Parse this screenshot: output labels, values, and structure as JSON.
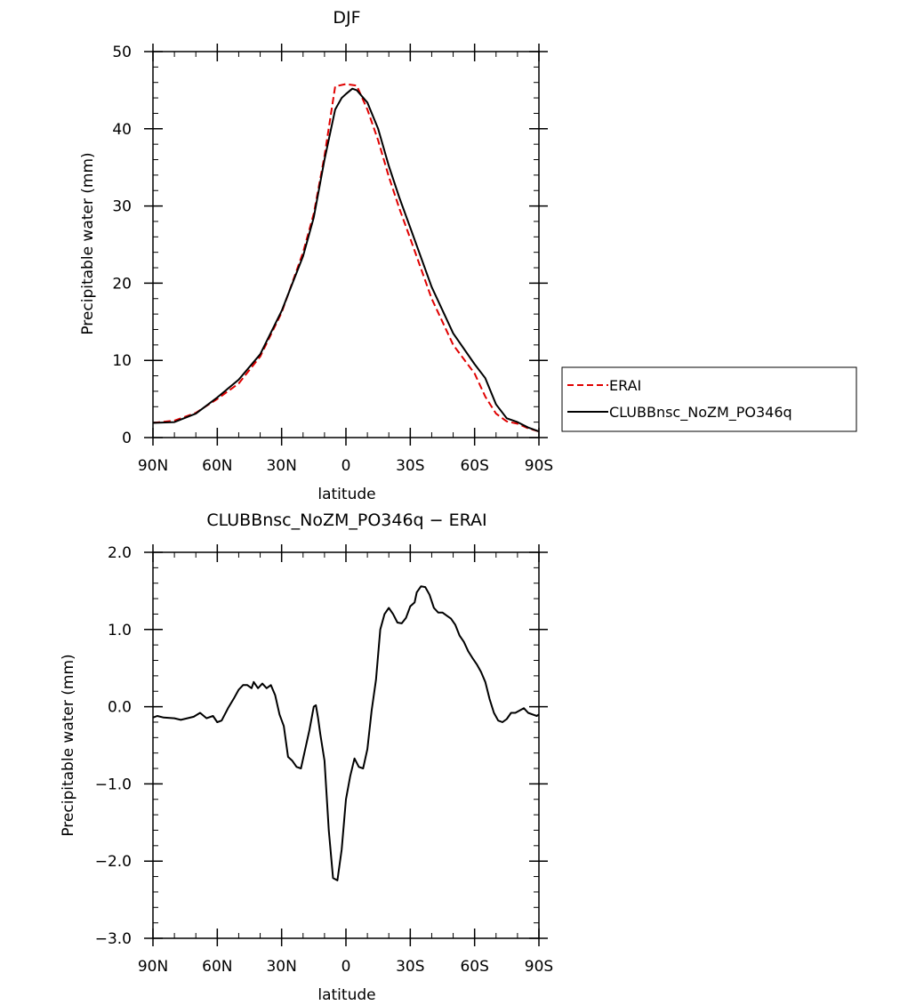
{
  "chart_data": [
    {
      "type": "line",
      "title": "DJF",
      "xlabel": "latitude",
      "ylabel": "Precipitable water (mm)",
      "xlim": [
        -90,
        90
      ],
      "ylim": [
        0,
        50
      ],
      "x_direction": "North to South",
      "xticks": [
        -90,
        -60,
        -30,
        0,
        30,
        60,
        90
      ],
      "xticklabels": [
        "90N",
        "60N",
        "30N",
        "0",
        "30S",
        "60S",
        "90S"
      ],
      "yticks": [
        0,
        10,
        20,
        30,
        40,
        50
      ],
      "yticklabels": [
        "0",
        "10",
        "20",
        "30",
        "40",
        "50"
      ],
      "legend": "right, outside plot, boxed",
      "grid": false,
      "series": [
        {
          "name": "ERAI",
          "color": "#e00000",
          "style": "dashed",
          "x": [
            -90,
            -80,
            -70,
            -60,
            -50,
            -40,
            -30,
            -20,
            -15,
            -10,
            -5,
            0,
            5,
            10,
            15,
            20,
            25,
            30,
            40,
            50,
            60,
            65,
            70,
            75,
            80,
            85,
            90
          ],
          "y": [
            1.9,
            2.2,
            3.2,
            5.0,
            7.0,
            10.5,
            16.2,
            24.0,
            29.0,
            36.5,
            45.5,
            45.8,
            45.6,
            42.5,
            38.5,
            33.8,
            29.6,
            25.8,
            18.0,
            12.0,
            8.3,
            5.3,
            3.1,
            2.1,
            1.8,
            1.2,
            0.8
          ]
        },
        {
          "name": "CLUBBnsc_NoZM_PO346q",
          "color": "#000000",
          "style": "solid",
          "x": [
            -90,
            -80,
            -70,
            -60,
            -50,
            -40,
            -30,
            -20,
            -15,
            -10,
            -5,
            -2,
            0,
            3,
            5,
            10,
            15,
            20,
            25,
            30,
            40,
            50,
            60,
            65,
            70,
            75,
            80,
            85,
            90
          ],
          "y": [
            1.9,
            2.0,
            3.1,
            5.2,
            7.5,
            10.8,
            16.4,
            23.5,
            28.5,
            36.0,
            42.5,
            44.0,
            44.5,
            45.2,
            45.0,
            43.4,
            40.0,
            35.2,
            31.0,
            27.2,
            19.5,
            13.5,
            9.5,
            7.7,
            4.3,
            2.5,
            2.0,
            1.3,
            0.8
          ]
        }
      ]
    },
    {
      "type": "line",
      "title": "CLUBBnsc_NoZM_PO346q  −  ERAI",
      "xlabel": "latitude",
      "ylabel": "Precipitable water (mm)",
      "xlim": [
        -90,
        90
      ],
      "ylim": [
        -3,
        2
      ],
      "x_direction": "North to South",
      "xticks": [
        -90,
        -60,
        -30,
        0,
        30,
        60,
        90
      ],
      "xticklabels": [
        "90N",
        "60N",
        "30N",
        "0",
        "30S",
        "60S",
        "90S"
      ],
      "yticks": [
        -3,
        -2,
        -1,
        0,
        1,
        2
      ],
      "yticklabels": [
        "−3.0",
        "−2.0",
        "−1.0",
        "0.0",
        "1.0",
        "2.0"
      ],
      "grid": false,
      "series": [
        {
          "name": "",
          "color": "#000000",
          "style": "solid",
          "x": [
            -90,
            -88,
            -85,
            -80,
            -77,
            -74,
            -71,
            -68,
            -65,
            -62,
            -60,
            -58,
            -55,
            -52,
            -50,
            -48,
            -46,
            -44,
            -43,
            -41,
            -39,
            -37,
            -35,
            -33,
            -31,
            -29,
            -27,
            -25,
            -23,
            -21,
            -19,
            -17,
            -15,
            -14,
            -13,
            -12,
            -10,
            -8,
            -6,
            -4,
            -2,
            0,
            2,
            4,
            6,
            8,
            10,
            12,
            14,
            16,
            18,
            20,
            22,
            24,
            26,
            28,
            30,
            32,
            33,
            35,
            37,
            39,
            41,
            43,
            45,
            47,
            49,
            51,
            53,
            55,
            57,
            59,
            61,
            63,
            65,
            67,
            69,
            71,
            73,
            75,
            77,
            79,
            81,
            83,
            85,
            87,
            89,
            90
          ],
          "y": [
            -0.14,
            -0.12,
            -0.14,
            -0.15,
            -0.17,
            -0.15,
            -0.13,
            -0.08,
            -0.15,
            -0.12,
            -0.2,
            -0.18,
            -0.02,
            0.12,
            0.22,
            0.28,
            0.28,
            0.24,
            0.32,
            0.24,
            0.3,
            0.24,
            0.28,
            0.15,
            -0.1,
            -0.25,
            -0.65,
            -0.7,
            -0.78,
            -0.8,
            -0.55,
            -0.3,
            0.0,
            0.02,
            -0.15,
            -0.35,
            -0.7,
            -1.6,
            -2.22,
            -2.25,
            -1.85,
            -1.2,
            -0.9,
            -0.67,
            -0.78,
            -0.8,
            -0.55,
            -0.05,
            0.35,
            1.0,
            1.2,
            1.28,
            1.2,
            1.09,
            1.08,
            1.15,
            1.3,
            1.35,
            1.48,
            1.56,
            1.55,
            1.45,
            1.28,
            1.22,
            1.22,
            1.18,
            1.14,
            1.06,
            0.92,
            0.84,
            0.72,
            0.63,
            0.55,
            0.45,
            0.32,
            0.1,
            -0.08,
            -0.18,
            -0.2,
            -0.16,
            -0.08,
            -0.08,
            -0.05,
            -0.02,
            -0.08,
            -0.1,
            -0.12,
            -0.1
          ]
        }
      ]
    }
  ]
}
